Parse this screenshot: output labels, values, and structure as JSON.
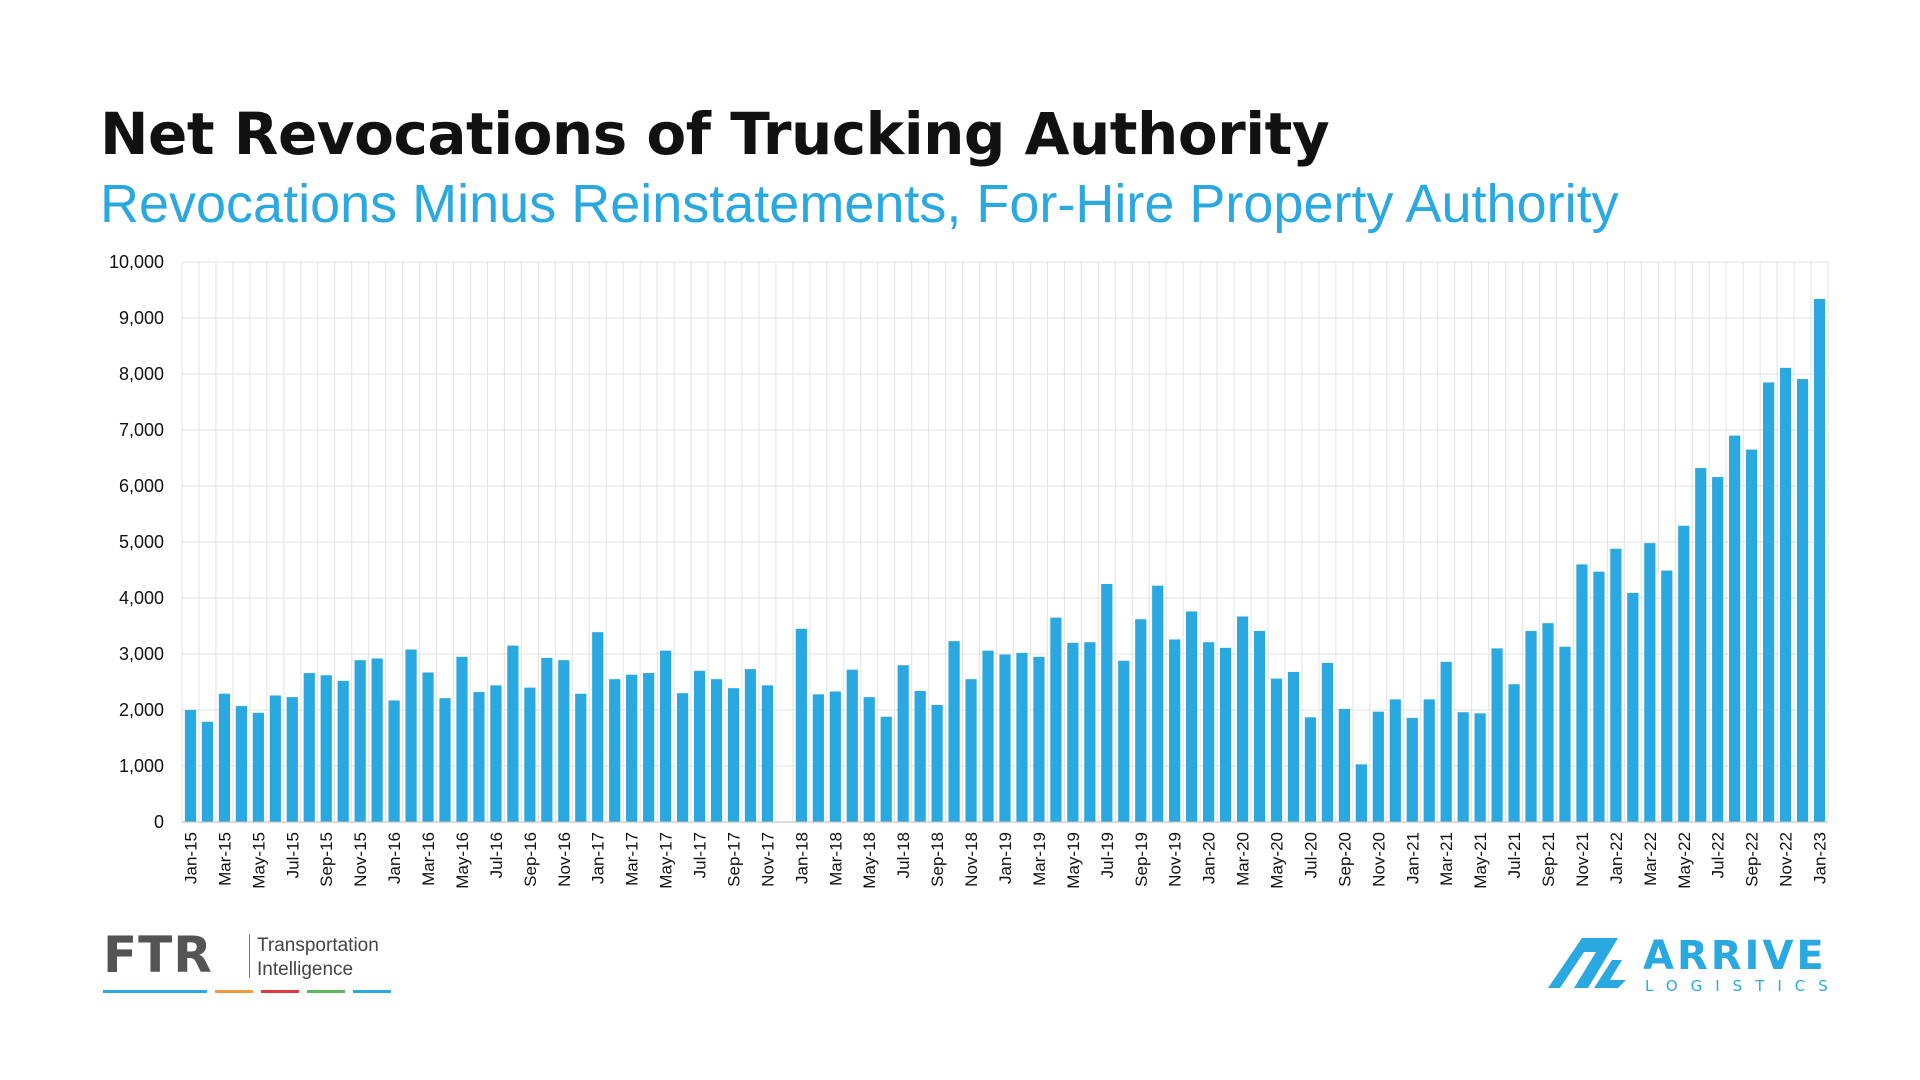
{
  "header": {
    "title": "Net Revocations of Trucking Authority",
    "subtitle": "Revocations Minus Reinstatements, For-Hire Property Authority"
  },
  "colors": {
    "bar": "#2aa8e0",
    "title": "#111111",
    "subtitle": "#2aa8e0",
    "grid": "#e3e3e3",
    "ftr_lines": [
      "#2aa8e0",
      "#f39a3c",
      "#e03a3a",
      "#5cb85c",
      "#2aa8e0"
    ]
  },
  "logos": {
    "ftr": {
      "mark": "FTR",
      "tagline_1": "Transportation",
      "tagline_2": "Intelligence"
    },
    "arrive": {
      "word": "ARRIVE",
      "sub": "LOGISTICS"
    }
  },
  "chart_data": {
    "type": "bar",
    "title": "Net Revocations of Trucking Authority",
    "subtitle": "Revocations Minus Reinstatements, For-Hire Property Authority",
    "xlabel": "",
    "ylabel": "",
    "ylim": [
      0,
      10000
    ],
    "yticks": [
      0,
      1000,
      2000,
      3000,
      4000,
      5000,
      6000,
      7000,
      8000,
      9000,
      10000
    ],
    "ytick_labels": [
      "0",
      "1,000",
      "2,000",
      "3,000",
      "4,000",
      "5,000",
      "6,000",
      "7,000",
      "8,000",
      "9,000",
      "10,000"
    ],
    "grid": true,
    "categories": [
      "Jan-15",
      "Feb-15",
      "Mar-15",
      "Apr-15",
      "May-15",
      "Jun-15",
      "Jul-15",
      "Aug-15",
      "Sep-15",
      "Oct-15",
      "Nov-15",
      "Dec-15",
      "Jan-16",
      "Feb-16",
      "Mar-16",
      "Apr-16",
      "May-16",
      "Jun-16",
      "Jul-16",
      "Aug-16",
      "Sep-16",
      "Oct-16",
      "Nov-16",
      "Dec-16",
      "Jan-17",
      "Feb-17",
      "Mar-17",
      "Apr-17",
      "May-17",
      "Jun-17",
      "Jul-17",
      "Aug-17",
      "Sep-17",
      "Oct-17",
      "Nov-17",
      "Dec-17",
      "Jan-18",
      "Feb-18",
      "Mar-18",
      "Apr-18",
      "May-18",
      "Jun-18",
      "Jul-18",
      "Aug-18",
      "Sep-18",
      "Oct-18",
      "Nov-18",
      "Dec-18",
      "Jan-19",
      "Feb-19",
      "Mar-19",
      "Apr-19",
      "May-19",
      "Jun-19",
      "Jul-19",
      "Aug-19",
      "Sep-19",
      "Oct-19",
      "Nov-19",
      "Dec-19",
      "Jan-20",
      "Feb-20",
      "Mar-20",
      "Apr-20",
      "May-20",
      "Jun-20",
      "Jul-20",
      "Aug-20",
      "Sep-20",
      "Oct-20",
      "Nov-20",
      "Dec-20",
      "Jan-21",
      "Feb-21",
      "Mar-21",
      "Apr-21",
      "May-21",
      "Jun-21",
      "Jul-21",
      "Aug-21",
      "Sep-21",
      "Oct-21",
      "Nov-21",
      "Dec-21",
      "Jan-22",
      "Feb-22",
      "Mar-22",
      "Apr-22",
      "May-22",
      "Jun-22",
      "Jul-22",
      "Aug-22",
      "Sep-22",
      "Oct-22",
      "Nov-22",
      "Dec-22",
      "Jan-23"
    ],
    "tick_labels_shown": [
      "Jan-15",
      "Mar-15",
      "May-15",
      "Jul-15",
      "Sep-15",
      "Nov-15",
      "Jan-16",
      "Mar-16",
      "May-16",
      "Jul-16",
      "Sep-16",
      "Nov-16",
      "Jan-17",
      "Mar-17",
      "May-17",
      "Jul-17",
      "Sep-17",
      "Nov-17",
      "Jan-18",
      "Mar-18",
      "May-18",
      "Jul-18",
      "Sep-18",
      "Nov-18",
      "Jan-19",
      "Mar-19",
      "May-19",
      "Jul-19",
      "Sep-19",
      "Nov-19",
      "Jan-20",
      "Mar-20",
      "May-20",
      "Jul-20",
      "Sep-20",
      "Nov-20",
      "Jan-21",
      "Mar-21",
      "May-21",
      "Jul-21",
      "Sep-21",
      "Nov-21",
      "Jan-22",
      "Mar-22",
      "May-22",
      "Jul-22",
      "Sep-22",
      "Nov-22",
      "Jan-23"
    ],
    "values": [
      2000,
      1790,
      2290,
      2070,
      1950,
      2260,
      2230,
      2660,
      2620,
      2520,
      2890,
      2920,
      2170,
      3080,
      2670,
      2210,
      2950,
      2320,
      2440,
      3150,
      2400,
      2930,
      2890,
      2290,
      3390,
      2550,
      2630,
      2660,
      3060,
      2300,
      2700,
      2550,
      2390,
      2730,
      2440,
      null,
      3450,
      2280,
      2330,
      2720,
      2230,
      1880,
      2800,
      2340,
      2090,
      3230,
      2550,
      3060,
      2990,
      3020,
      2950,
      3650,
      3200,
      3210,
      4250,
      2880,
      3620,
      4220,
      3260,
      3760,
      3210,
      3110,
      3670,
      3410,
      2560,
      2680,
      1870,
      2840,
      2020,
      1030,
      1970,
      2190,
      1860,
      2190,
      2860,
      1960,
      1940,
      3100,
      2460,
      3410,
      3550,
      3130,
      4600,
      4470,
      4880,
      4090,
      4980,
      4490,
      5290,
      6320,
      6160,
      6900,
      6650,
      7850,
      8110,
      7910,
      9340
    ]
  }
}
